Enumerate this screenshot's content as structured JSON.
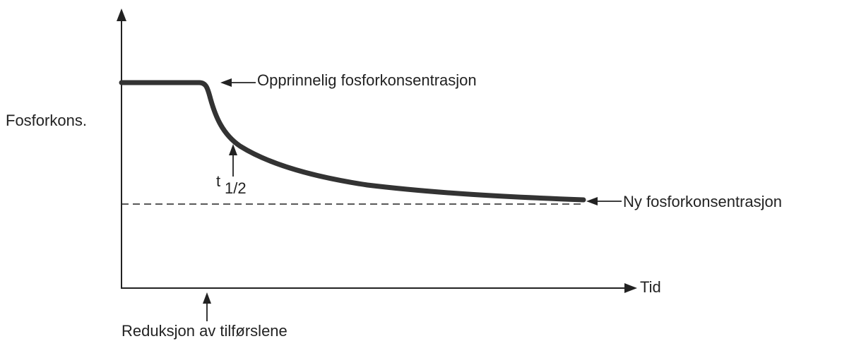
{
  "axes": {
    "y_label": "Fosforkons.",
    "x_label": "Tid"
  },
  "annotations": {
    "initial": "Opprinnelig fosforkonsentrasjon",
    "new": "Ny fosforkonsentrasjon",
    "half_life": {
      "symbol": "t",
      "subscript": "1/2"
    },
    "reduction": "Reduksjon av tilførslene"
  }
}
